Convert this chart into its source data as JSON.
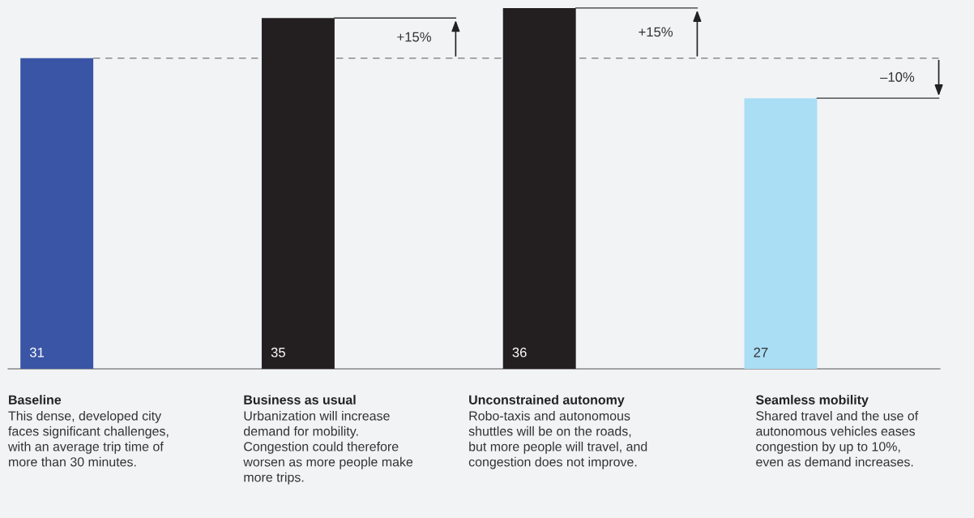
{
  "chart_data": {
    "type": "bar",
    "categories": [
      "Baseline",
      "Business as usual",
      "Unconstrained autonomy",
      "Seamless mobility"
    ],
    "values": [
      31,
      35,
      36,
      27
    ],
    "colors": [
      "#3a55a5",
      "#231f20",
      "#231f20",
      "#a9def5"
    ],
    "data_labels": true,
    "ylim": [
      0,
      36.8
    ],
    "ref_lines": [
      {
        "axis": "y",
        "value": 31,
        "color": "#8c8c8c",
        "line_style": "dashed"
      }
    ],
    "annotations": [
      "+15%",
      "+15%",
      "–10%",
      "This dense, developed city\nfaces significant challenges,\nwith an average trip time of\nmore than 30 minutes.",
      "Urbanization will increase\ndemand for mobility.\nCongestion could therefore\nworsen as more people make\nmore trips.",
      "Robo-taxis and autonomous\nshuttles will be on the roads,\nbut more people will travel, and\ncongestion does not improve.",
      "Shared travel and the use of\nautonomous vehicles eases\ncongestion by up to 10%,\neven as demand increases."
    ],
    "orientation": "vertical"
  }
}
